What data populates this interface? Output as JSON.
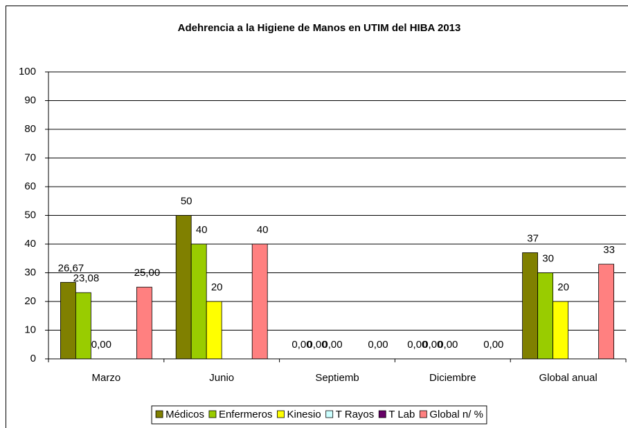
{
  "chart_data": {
    "type": "bar",
    "title": "Adehrencia a la Higiene de Manos en UTIM del HIBA 2013",
    "categories": [
      "Marzo",
      "Junio",
      "Septiemb",
      "Diciembre",
      "Global anual"
    ],
    "series": [
      {
        "name": "Médicos",
        "color": "#808000",
        "values": [
          26.67,
          50,
          0,
          0,
          37
        ],
        "value_labels": [
          "26,67",
          "50",
          "0,00",
          "0,00",
          "37"
        ]
      },
      {
        "name": "Enfermeros",
        "color": "#99cc00",
        "values": [
          23.08,
          40,
          0,
          0,
          30
        ],
        "value_labels": [
          "23,08",
          "40",
          "0,00",
          "0,00",
          "30"
        ]
      },
      {
        "name": "Kinesio",
        "color": "#ffff00",
        "values": [
          0,
          20,
          0,
          0,
          20
        ],
        "value_labels": [
          "0,00",
          "20",
          "0,00",
          "0,00",
          "20"
        ]
      },
      {
        "name": "T Rayos",
        "color": "#ccffff",
        "values": [
          null,
          null,
          null,
          null,
          null
        ]
      },
      {
        "name": "T Lab",
        "color": "#660066",
        "values": [
          null,
          null,
          null,
          null,
          null
        ]
      },
      {
        "name": "Global n/ %",
        "color": "#ff8080",
        "values": [
          25,
          40,
          0,
          0,
          33
        ],
        "value_labels": [
          "25,00",
          "40",
          "0,00",
          "0,00",
          "33"
        ]
      }
    ],
    "ylim": [
      0,
      100
    ],
    "yticks": [
      0,
      10,
      20,
      30,
      40,
      50,
      60,
      70,
      80,
      90,
      100
    ],
    "grid": true,
    "legend": "bottom"
  }
}
